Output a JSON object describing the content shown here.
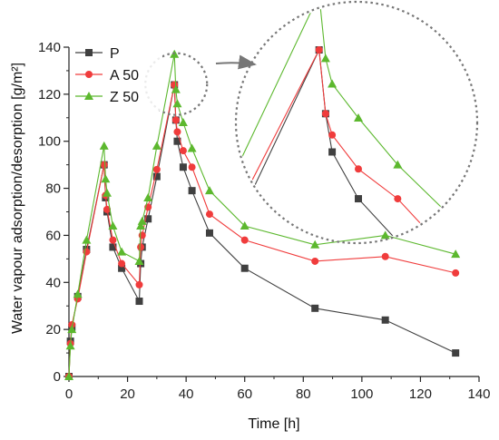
{
  "chart_data": {
    "type": "line",
    "xlabel": "Time [h]",
    "ylabel": "Water vapour adsorption/desorption [g/m²]",
    "xlim": [
      0,
      140
    ],
    "ylim": [
      0,
      140
    ],
    "x_ticks": [
      0,
      20,
      40,
      60,
      80,
      100,
      120,
      140
    ],
    "y_ticks": [
      0,
      20,
      40,
      60,
      80,
      100,
      120,
      140
    ],
    "grid": false,
    "legend_position": "top-left",
    "series": [
      {
        "name": "P",
        "color": "#404040",
        "marker": "square",
        "x": [
          0,
          0.5,
          1,
          3,
          6,
          12,
          12.5,
          13,
          15,
          18,
          24,
          24.5,
          25,
          27,
          30,
          36,
          36.5,
          37,
          39,
          42,
          48,
          60,
          84,
          108,
          132
        ],
        "y": [
          0,
          15,
          21,
          34,
          54,
          90,
          76,
          70,
          55,
          46,
          32,
          48,
          55,
          67,
          85,
          124,
          109,
          100,
          89,
          79,
          61,
          46,
          29,
          24,
          10
        ]
      },
      {
        "name": "A 50",
        "color": "#f03c3c",
        "marker": "circle",
        "x": [
          0,
          0.5,
          1,
          3,
          6,
          12,
          12.5,
          13,
          15,
          18,
          24,
          24.5,
          25,
          27,
          30,
          36,
          36.5,
          37,
          39,
          42,
          48,
          60,
          84,
          108,
          132
        ],
        "y": [
          0,
          14,
          22,
          33,
          53,
          90,
          77,
          71,
          58,
          48,
          39,
          55,
          60,
          72,
          88,
          124,
          109,
          104,
          96,
          89,
          69,
          58,
          49,
          51,
          44
        ]
      },
      {
        "name": "Z 50",
        "color": "#5cb82e",
        "marker": "triangle",
        "x": [
          0,
          0.5,
          1,
          3,
          6,
          12,
          12.5,
          13,
          15,
          18,
          24,
          24.5,
          25,
          27,
          30,
          36,
          36.5,
          37,
          39,
          42,
          48,
          60,
          84,
          108,
          132
        ],
        "y": [
          0,
          13,
          20,
          35,
          58,
          98,
          84,
          78,
          64,
          53,
          49,
          64,
          66,
          76,
          98,
          137,
          122,
          116,
          108,
          97,
          79,
          64,
          56,
          60,
          52
        ]
      }
    ],
    "annotation": "zoom-in circle around peak at ~36 h, arrow pointing to enlarged view"
  }
}
